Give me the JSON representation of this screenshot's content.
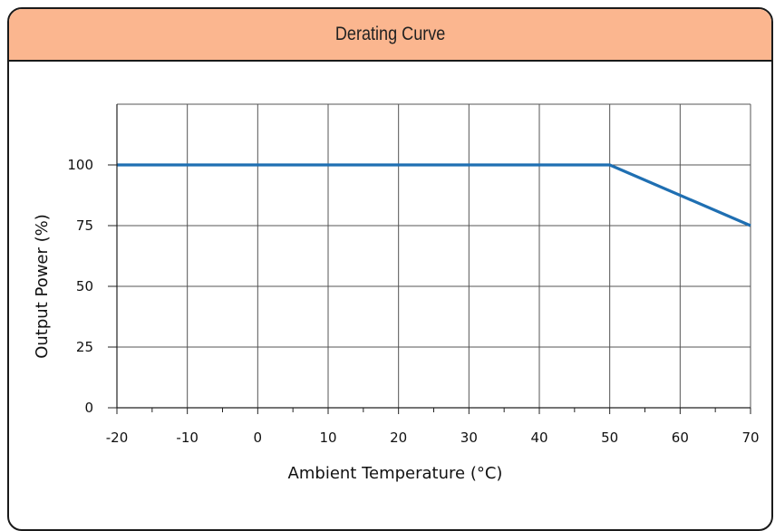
{
  "panel": {
    "title": "Derating Curve"
  },
  "colors": {
    "header_bg": "#fbb68f",
    "series_line": "#1f6fb2",
    "grid": "#555555"
  },
  "chart_data": {
    "type": "line",
    "title": "Derating Curve",
    "xlabel": "Ambient Temperature (°C)",
    "ylabel": "Output Power (%)",
    "xlim": [
      -20,
      70
    ],
    "ylim": [
      0,
      125
    ],
    "x_ticks": [
      -20,
      -10,
      0,
      10,
      20,
      30,
      40,
      50,
      60,
      70
    ],
    "x_tick_labels": [
      "-20",
      "-10",
      "0",
      "10",
      "20",
      "30",
      "40",
      "50",
      "60",
      "70"
    ],
    "y_ticks": [
      0,
      25,
      50,
      75,
      100
    ],
    "y_tick_labels": [
      "0",
      "25",
      "50",
      "75",
      "100"
    ],
    "grid": true,
    "series": [
      {
        "x": [
          -20,
          50,
          70
        ],
        "y": [
          100,
          100,
          75
        ]
      }
    ]
  }
}
